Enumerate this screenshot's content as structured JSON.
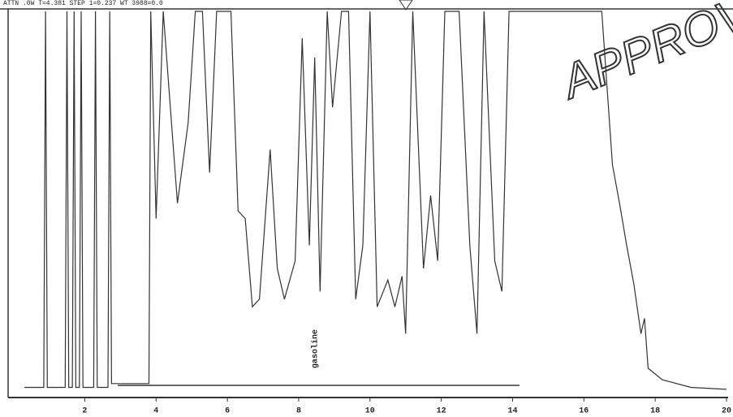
{
  "chart_data": {
    "type": "line",
    "header": "ATTN .0W  T=4.381  STEP 1=0.237  WT 3988=0.0",
    "stamp": "APPROVED",
    "annotation": {
      "text": "gasoline",
      "x": 8.45
    },
    "x": [
      0.3,
      0.85,
      0.9,
      0.95,
      1.45,
      1.5,
      1.55,
      1.65,
      1.7,
      1.75,
      1.85,
      1.9,
      1.95,
      2.25,
      2.3,
      2.35,
      2.65,
      2.7,
      2.75,
      3.0,
      3.8,
      3.85,
      4.0,
      4.2,
      4.6,
      4.9,
      5.1,
      5.3,
      5.5,
      5.7,
      6.1,
      6.3,
      6.5,
      6.7,
      6.9,
      7.2,
      7.4,
      7.6,
      7.9,
      8.1,
      8.3,
      8.45,
      8.6,
      8.8,
      8.95,
      9.2,
      9.4,
      9.6,
      9.8,
      10.0,
      10.2,
      10.5,
      10.7,
      10.9,
      11.0,
      11.2,
      11.5,
      11.7,
      11.9,
      12.1,
      12.5,
      12.8,
      13.0,
      13.2,
      13.5,
      13.7,
      13.9,
      16.5,
      16.8,
      17.0,
      17.2,
      17.4,
      17.6,
      17.7,
      17.8,
      18.2,
      19.0,
      20.0
    ],
    "values": [
      2,
      2,
      100,
      2,
      2,
      100,
      2,
      2,
      100,
      2,
      2,
      100,
      2,
      2,
      100,
      2,
      2,
      100,
      3,
      3,
      3,
      100,
      46,
      100,
      50,
      71,
      100,
      100,
      58,
      100,
      100,
      48,
      46,
      23,
      25,
      64,
      33,
      25,
      35,
      93,
      39,
      88,
      27,
      100,
      75,
      100,
      100,
      25,
      39,
      100,
      23,
      30,
      23,
      31,
      16,
      100,
      33,
      52,
      35,
      100,
      100,
      39,
      16,
      100,
      35,
      27,
      100,
      100,
      60,
      50,
      39,
      29,
      16,
      20,
      7,
      4,
      2,
      1.5
    ],
    "color": "#333333",
    "xlim": [
      -0.15,
      20
    ],
    "ylim": [
      0,
      100
    ],
    "xticks": [
      2,
      4,
      6,
      8,
      10,
      12,
      14,
      16,
      18,
      20
    ]
  }
}
